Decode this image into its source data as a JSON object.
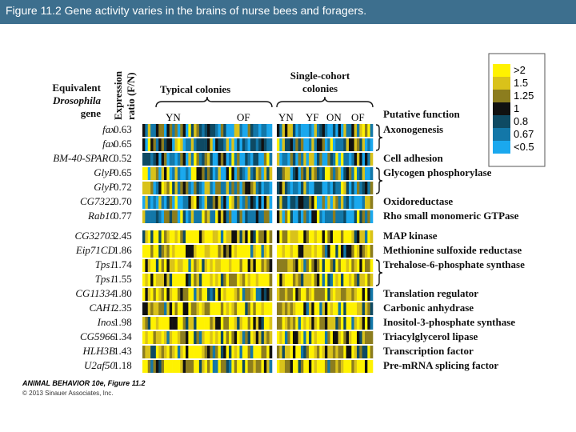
{
  "page": {
    "title": "Figure 11.2  Gene activity varies in the brains of nurse bees and foragers."
  },
  "figure": {
    "gene_header": [
      "Equivalent",
      "Drosophila",
      "gene"
    ],
    "ratio_header": [
      "Expression",
      "ratio (F/N)"
    ],
    "typical_header": "Typical colonies",
    "single_header": [
      "Single-cohort",
      "colonies"
    ],
    "function_header": "Putative function",
    "col_labels_typical": [
      "YN",
      "OF"
    ],
    "col_labels_single": [
      "YN",
      "YF",
      "ON",
      "OF"
    ],
    "credit": "ANIMAL BEHAVIOR 10e, Figure 11.2",
    "copyright": "© 2013 Sinauer Associates, Inc."
  },
  "chart_data": {
    "type": "heatmap",
    "genes": [
      "fax",
      "fax",
      "BM-40-SPARC",
      "GlyP",
      "GlyP",
      "CG7322",
      "Rab10",
      "CG32703",
      "Eip71CD",
      "Tps1",
      "Tps1",
      "CG11334",
      "CAH1",
      "Inos",
      "CG5966",
      "HLH3B",
      "U2af50"
    ],
    "ratios": [
      "0.63",
      "0.65",
      "0.52",
      "0.65",
      "0.72",
      "0.70",
      "0.77",
      "2.45",
      "1.86",
      "1.74",
      "1.55",
      "1.80",
      "2.35",
      "1.98",
      "1.34",
      "1.43",
      "1.18"
    ],
    "functions": [
      "Axonogenesis",
      "Cell adhesion",
      "Glycogen phosphorylase",
      "Oxidoreductase",
      "Rho small monomeric GTPase",
      "MAP kinase",
      "Methionine sulfoxide reductase",
      "Trehalose-6-phosphate synthase",
      "Translation regulator",
      "Carbonic anhydrase",
      "Inositol-3-phosphate synthase",
      "Triacylglycerol lipase",
      "Transcription factor",
      "Pre-mRNA splicing factor"
    ],
    "function_rows": [
      0,
      2,
      3,
      5,
      6,
      7,
      8,
      9,
      11,
      12,
      13,
      14,
      15,
      16
    ],
    "bracket_groups": [
      [
        0,
        1
      ],
      [
        3,
        4
      ],
      [
        9,
        10
      ]
    ],
    "legend": {
      "labels": [
        ">2",
        "1.5",
        "1.25",
        "1",
        "0.8",
        "0.67",
        "<0.5"
      ],
      "colors": [
        "#fff200",
        "#d9c21a",
        "#8c7d1e",
        "#111111",
        "#0e4a63",
        "#1377a8",
        "#1aa8ee"
      ]
    }
  }
}
